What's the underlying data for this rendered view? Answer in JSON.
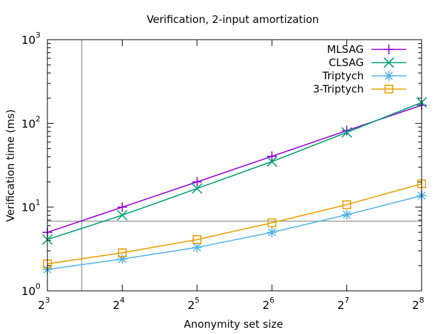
{
  "chart_data": {
    "type": "line",
    "title": "Verification, 2-input amortization",
    "xlabel": "Anonymity set size",
    "ylabel": "Verification time (ms)",
    "x_scale": "log2",
    "y_scale": "log10",
    "xlim": [
      8,
      256
    ],
    "ylim": [
      1,
      1000
    ],
    "x": [
      8,
      16,
      32,
      64,
      128,
      256
    ],
    "x_ticks": [
      {
        "base": "2",
        "exp": "3"
      },
      {
        "base": "2",
        "exp": "4"
      },
      {
        "base": "2",
        "exp": "5"
      },
      {
        "base": "2",
        "exp": "6"
      },
      {
        "base": "2",
        "exp": "7"
      },
      {
        "base": "2",
        "exp": "8"
      }
    ],
    "y_ticks": [
      {
        "base": "10",
        "exp": "0"
      },
      {
        "base": "10",
        "exp": "1"
      },
      {
        "base": "10",
        "exp": "2"
      },
      {
        "base": "10",
        "exp": "3"
      }
    ],
    "reference_lines": {
      "vertical_x": 11,
      "horizontal_y": 6.8,
      "color": "#a0a0a0"
    },
    "legend_position": "top-right",
    "grid": false,
    "series": [
      {
        "name": "MLSAG",
        "color": "#9400d3",
        "marker": "plus",
        "values": [
          5.0,
          10.0,
          20.0,
          40.5,
          82.0,
          165.0
        ]
      },
      {
        "name": "CLSAG",
        "color": "#009e73",
        "marker": "cross",
        "values": [
          4.1,
          8.0,
          16.7,
          35.0,
          78.0,
          178.0
        ]
      },
      {
        "name": "Triptych",
        "color": "#56b4e9",
        "marker": "star",
        "values": [
          1.8,
          2.4,
          3.3,
          5.0,
          8.1,
          13.7
        ]
      },
      {
        "name": "3-Triptych",
        "color": "#e69f00",
        "marker": "square",
        "values": [
          2.1,
          2.85,
          4.1,
          6.5,
          10.7,
          19.0
        ]
      }
    ]
  }
}
